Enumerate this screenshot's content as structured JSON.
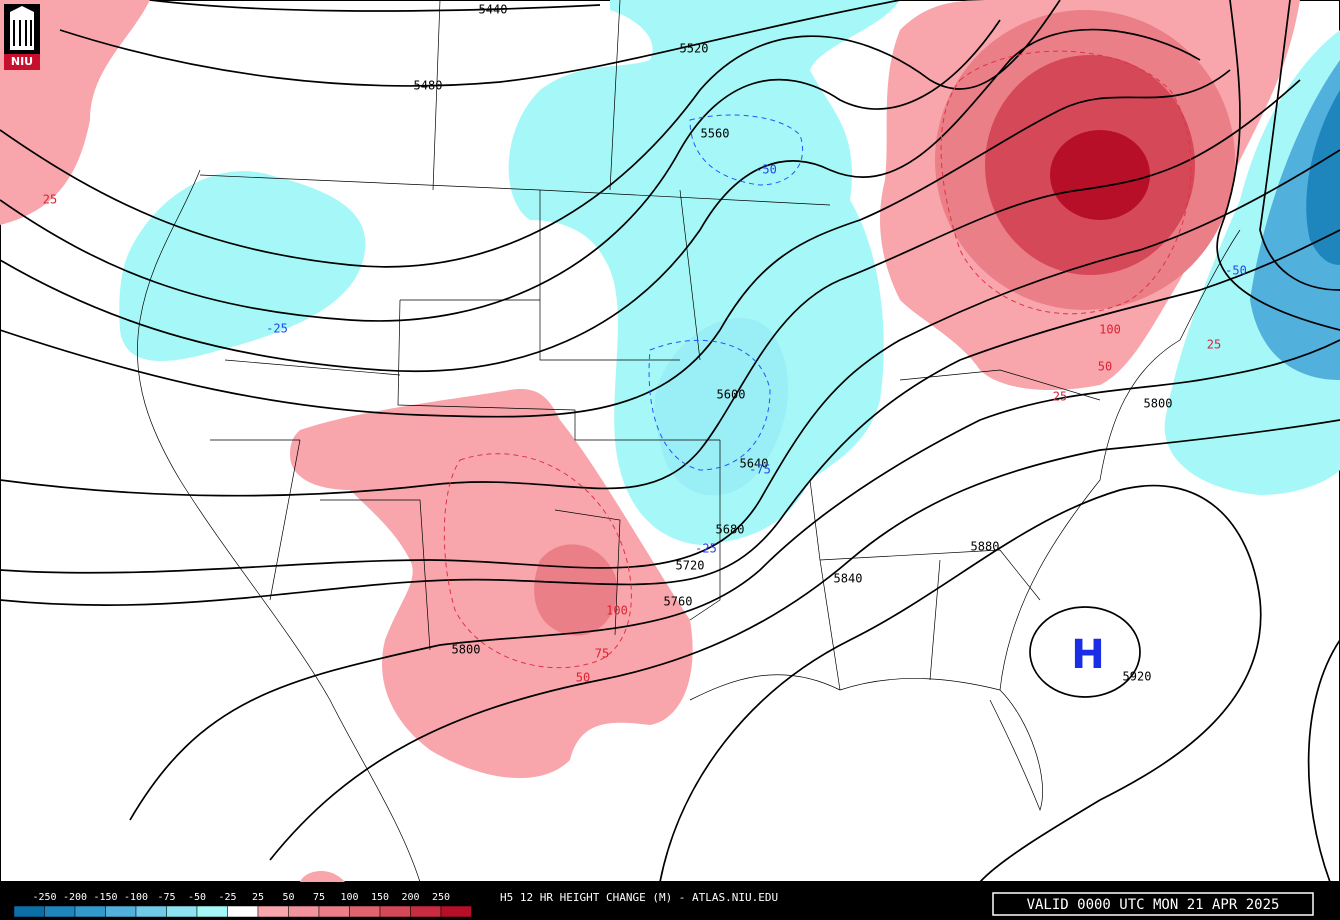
{
  "logo": "NIU",
  "title": "H5 12 HR HEIGHT CHANGE (M) - ATLAS.NIU.EDU",
  "valid": "VALID 0000 UTC MON 21 APR 2025",
  "high_label": "H",
  "colorbar": {
    "labels": [
      "-250",
      "-200",
      "-150",
      "-100",
      "-75",
      "-50",
      "-25",
      "25",
      "50",
      "75",
      "100",
      "150",
      "200",
      "250"
    ],
    "colors": [
      "#0d6fa8",
      "#1f85bd",
      "#3399cc",
      "#52b0dc",
      "#70cbe8",
      "#8ee3f2",
      "#a6f8f8",
      "#ffffff",
      "#f8a6ac",
      "#f2939b",
      "#eb7f88",
      "#e06470",
      "#d54858",
      "#c92b40",
      "#b80f28"
    ]
  },
  "height_labels": [
    "5440",
    "5480",
    "5520",
    "5560",
    "5600",
    "5640",
    "5680",
    "5720",
    "5760",
    "5800",
    "5800",
    "5840",
    "5880",
    "5920"
  ],
  "change_labels": [
    "-50",
    "-25",
    "-25",
    "-75",
    "25",
    "25",
    "50",
    "75",
    "50",
    "100",
    "100",
    "-50",
    "25"
  ]
}
